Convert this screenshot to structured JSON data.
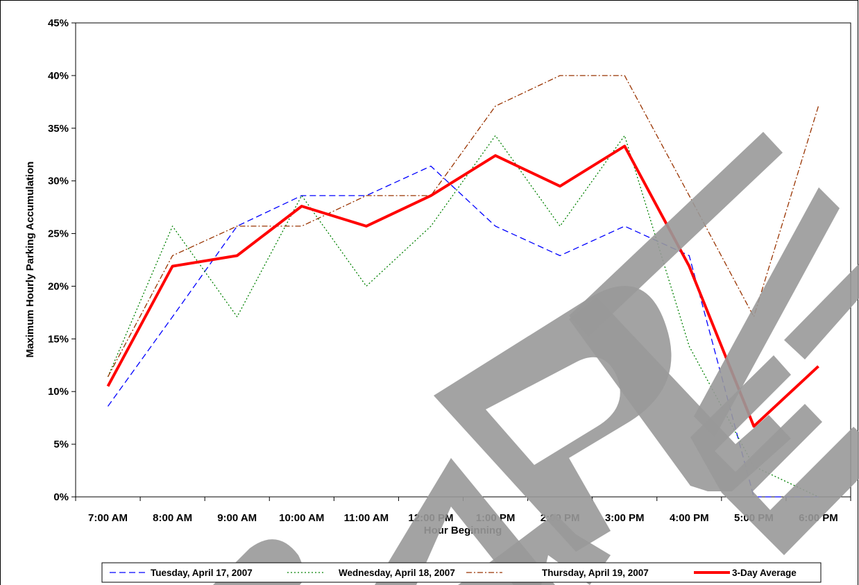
{
  "chart_data": {
    "type": "line",
    "xlabel": "Hour Beginning",
    "ylabel": "Maximum Hourly Parking Accumulation",
    "categories": [
      "7:00 AM",
      "8:00 AM",
      "9:00 AM",
      "10:00 AM",
      "11:00 AM",
      "12:00 PM",
      "1:00 PM",
      "2:00 PM",
      "3:00 PM",
      "4:00 PM",
      "5:00 PM",
      "6:00 PM"
    ],
    "ylim": [
      0,
      45
    ],
    "ytick_step": 5,
    "yticks": [
      "0%",
      "5%",
      "10%",
      "15%",
      "20%",
      "25%",
      "30%",
      "35%",
      "40%",
      "45%"
    ],
    "grid": false,
    "legend_position": "bottom",
    "series": [
      {
        "name": "Tuesday, April 17, 2007",
        "color": "#0000ff",
        "style": "dashed",
        "values": [
          8.6,
          17.1,
          25.7,
          28.6,
          28.6,
          31.4,
          25.7,
          22.9,
          25.7,
          22.9,
          0,
          0
        ]
      },
      {
        "name": "Wednesday, April 18, 2007",
        "color": "#008000",
        "style": "dotted",
        "values": [
          11.4,
          25.7,
          17.1,
          28.6,
          20.0,
          25.7,
          34.3,
          25.7,
          34.3,
          14.3,
          2.9,
          0
        ]
      },
      {
        "name": "Thursday, April 19, 2007",
        "color": "#993300",
        "style": "dash-dot",
        "values": [
          11.4,
          22.9,
          25.7,
          25.7,
          28.6,
          28.6,
          37.1,
          40.0,
          40.0,
          28.6,
          17.1,
          37.1
        ]
      },
      {
        "name": "3-Day Average",
        "color": "#ff0000",
        "style": "solid-thick",
        "values": [
          10.5,
          21.9,
          22.9,
          27.6,
          25.7,
          28.6,
          32.4,
          29.5,
          33.3,
          21.9,
          6.7,
          12.4
        ]
      }
    ]
  },
  "watermark": {
    "text": "SAMPLE",
    "color": "#999999"
  }
}
